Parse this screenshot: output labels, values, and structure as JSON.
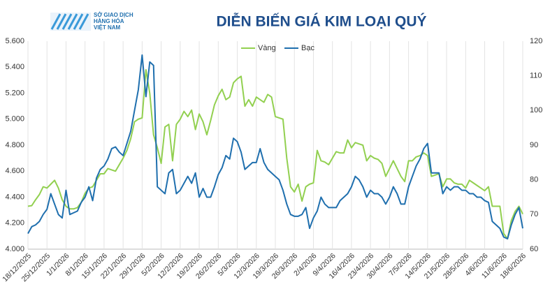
{
  "logo": [
    "SỞ GIAO DỊCH",
    "HÀNG HÓA",
    "VIỆT NAM"
  ],
  "chart_data": {
    "type": "line",
    "title": "DIỄN BIẾN GIÁ KIM LOẠI QUÝ",
    "categories": [
      "18/12/2025",
      null,
      null,
      null,
      null,
      "25/12/2025",
      null,
      null,
      null,
      null,
      "1/1/2026",
      null,
      null,
      null,
      null,
      "8/1/2026",
      null,
      null,
      null,
      null,
      "15/1/2026",
      null,
      null,
      null,
      null,
      "22/1/2026",
      null,
      null,
      null,
      null,
      "29/1/2026",
      null,
      null,
      null,
      null,
      "5/2/2026",
      null,
      null,
      null,
      null,
      "12/2/2026",
      null,
      null,
      null,
      null,
      "19/2/2026",
      null,
      null,
      null,
      null,
      "26/2/2026",
      null,
      null,
      null,
      null,
      "5/3/2026",
      null,
      null,
      null,
      null,
      "12/3/2026",
      null,
      null,
      null,
      null,
      "19/3/2026",
      null,
      null,
      null,
      null,
      "26/3/2026",
      null,
      null,
      null,
      null,
      "2/4/2026",
      null,
      null,
      null,
      null,
      "9/4/2026",
      null,
      null,
      null,
      null,
      "16/4/2026",
      null,
      null,
      null,
      null,
      "23/4/2026",
      null,
      null,
      null,
      null,
      "30/4/2026",
      null,
      null,
      null,
      null,
      "7/5/2026",
      null,
      null,
      null,
      null,
      "14/5/2026",
      null,
      null,
      null,
      null,
      "21/5/2026",
      null,
      null,
      null,
      null,
      "28/5/2026",
      null,
      null,
      null,
      null,
      "4/6/2026",
      null,
      null,
      null,
      null,
      "11/6/2026",
      null,
      null,
      null,
      null,
      "18/6/2026"
    ],
    "series": [
      {
        "name": "Vàng",
        "color": "#92d050",
        "axis": "y",
        "values": [
          4330,
          4335,
          4380,
          4420,
          4480,
          4470,
          4500,
          4530,
          4470,
          4380,
          4330,
          4310,
          4310,
          4320,
          4360,
          4430,
          4470,
          4480,
          4530,
          4580,
          4580,
          4620,
          4610,
          4600,
          4650,
          4700,
          4760,
          4850,
          4980,
          5000,
          5010,
          5380,
          5200,
          4880,
          4780,
          4660,
          4940,
          4960,
          4680,
          4960,
          5000,
          5060,
          5020,
          5070,
          4920,
          5040,
          4980,
          4880,
          4990,
          5110,
          5180,
          5230,
          5150,
          5170,
          5280,
          5310,
          5330,
          5100,
          5150,
          5100,
          5170,
          5150,
          5130,
          5190,
          5170,
          5020,
          5010,
          5000,
          4700,
          4480,
          4440,
          4500,
          4370,
          4480,
          4500,
          4510,
          4760,
          4680,
          4670,
          4650,
          4700,
          4750,
          4740,
          4740,
          4840,
          4780,
          4820,
          4810,
          4800,
          4680,
          4720,
          4700,
          4690,
          4660,
          4560,
          4620,
          4680,
          4620,
          4560,
          4520,
          4680,
          4680,
          4710,
          4720,
          4740,
          4720,
          4560,
          4570,
          4580,
          4480,
          4540,
          4540,
          4510,
          4500,
          4500,
          4470,
          4530,
          4510,
          4490,
          4470,
          4450,
          4480,
          4330,
          4330,
          4330,
          4120,
          4080,
          4220,
          4290,
          4330,
          4270
        ]
      },
      {
        "name": "Bạc",
        "color": "#1f6fae",
        "axis": "y2",
        "values": [
          64.5,
          66.5,
          67,
          68,
          70,
          71.5,
          76,
          73,
          70,
          69,
          77,
          70,
          70.5,
          71,
          73.5,
          75,
          78,
          74,
          80.5,
          83,
          84,
          86,
          89,
          89.5,
          88,
          87,
          90.5,
          94,
          100,
          106,
          116,
          104,
          114,
          113,
          78,
          77,
          76,
          82,
          83,
          76,
          77,
          79,
          81,
          79,
          82,
          75,
          77.5,
          75,
          75,
          78,
          81.5,
          83.5,
          87,
          86,
          92,
          91,
          88,
          83,
          84,
          85,
          85,
          89,
          85,
          83,
          82,
          81,
          80,
          77,
          73,
          70,
          69.5,
          69.5,
          70,
          72,
          66,
          69,
          71,
          75,
          73,
          72,
          72,
          72,
          74,
          75,
          76,
          78,
          81,
          80,
          78,
          75,
          77,
          76,
          76,
          75,
          73,
          75,
          78,
          76,
          73,
          73,
          78,
          81,
          84,
          86,
          89,
          90.5,
          82,
          82,
          82,
          76,
          78,
          77,
          78,
          78,
          77,
          77,
          76,
          76,
          75,
          75,
          74,
          73.5,
          68,
          67,
          66,
          63.5,
          63,
          67,
          70,
          72,
          66
        ]
      }
    ],
    "ylim": [
      4000,
      5600
    ],
    "yticks": [
      {
        "value": 4000,
        "label": "4.000"
      },
      {
        "value": 4200,
        "label": "4.200"
      },
      {
        "value": 4400,
        "label": "4.400"
      },
      {
        "value": 4600,
        "label": "4.600"
      },
      {
        "value": 4800,
        "label": "4.800"
      },
      {
        "value": 5000,
        "label": "5.000"
      },
      {
        "value": 5200,
        "label": "5.200"
      },
      {
        "value": 5400,
        "label": "5.400"
      },
      {
        "value": 5600,
        "label": "5.600"
      }
    ],
    "y2lim": [
      60,
      120
    ],
    "y2ticks": [
      60,
      70,
      80,
      90,
      100,
      110,
      120
    ],
    "grid": "x",
    "legend": "top"
  }
}
